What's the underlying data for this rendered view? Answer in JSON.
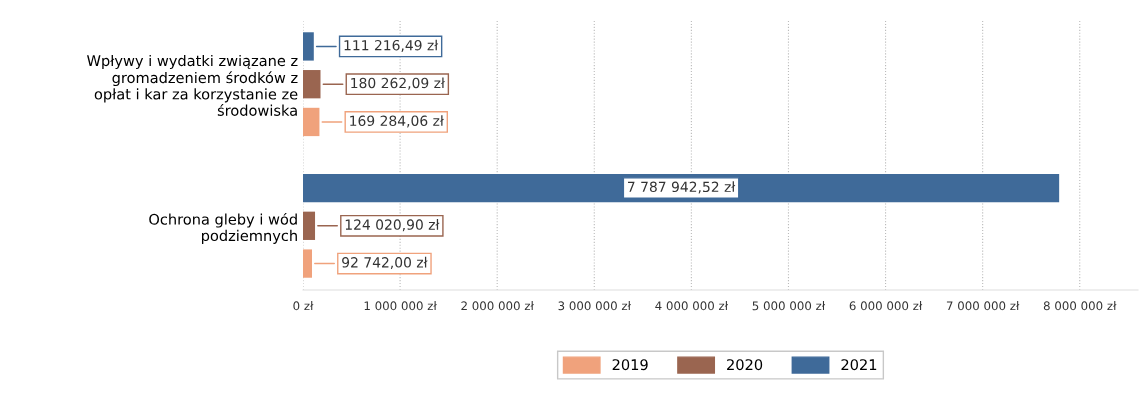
{
  "chart_data": {
    "type": "bar",
    "orientation": "horizontal",
    "categories": [
      "Wpływy i wydatki związane z\ngromadzeniem środków z\nopłat i kar za korzystanie ze\nśrodowiska",
      "Ochrona gleby i wód\npodziemnych"
    ],
    "series": [
      {
        "name": "2019",
        "color": "#f0a27c",
        "values": [
          169284.06,
          92742.0
        ],
        "value_labels": [
          "169 284,06 zł",
          "92 742,00 zł"
        ]
      },
      {
        "name": "2020",
        "color": "#9a6550",
        "values": [
          180262.09,
          124020.9
        ],
        "value_labels": [
          "180 262,09 zł",
          "124 020,90 zł"
        ]
      },
      {
        "name": "2021",
        "color": "#3f6a99",
        "values": [
          111216.49,
          7787942.52
        ],
        "value_labels": [
          "111 216,49 zł",
          "7 787 942,52 zł"
        ]
      }
    ],
    "xlim": [
      0,
      8600000
    ],
    "xticks": [
      {
        "value": 0,
        "label": "0 zł"
      },
      {
        "value": 1000000,
        "label": "1 000 000 zł"
      },
      {
        "value": 2000000,
        "label": "2 000 000 zł"
      },
      {
        "value": 3000000,
        "label": "3 000 000 zł"
      },
      {
        "value": 4000000,
        "label": "4 000 000 zł"
      },
      {
        "value": 5000000,
        "label": "5 000 000 zł"
      },
      {
        "value": 6000000,
        "label": "6 000 000 zł"
      },
      {
        "value": 7000000,
        "label": "7 000 000 zł"
      },
      {
        "value": 8000000,
        "label": "8 000 000 zł"
      }
    ],
    "grid": "x",
    "legend": "bottom"
  }
}
